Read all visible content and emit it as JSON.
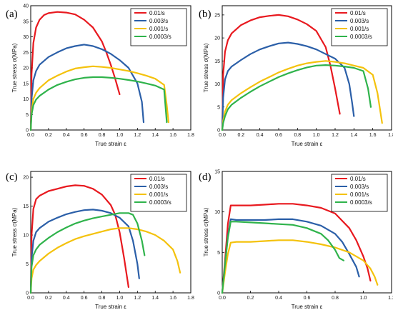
{
  "chart_data": [
    {
      "panel": "(a)",
      "type": "line",
      "xlabel": "True strain ε",
      "ylabel": "True stress σ(MPa)",
      "xlim": [
        0.0,
        1.8
      ],
      "ylim": [
        0,
        40
      ],
      "xticks": [
        0.0,
        0.2,
        0.4,
        0.6,
        0.8,
        1.0,
        1.2,
        1.4,
        1.6,
        1.8
      ],
      "yticks": [
        0,
        5,
        10,
        15,
        20,
        25,
        30,
        35,
        40
      ],
      "legend": "top-right",
      "series": [
        {
          "name": "0.01/s",
          "color": "#e8191f",
          "x": [
            0,
            0.01,
            0.03,
            0.06,
            0.1,
            0.15,
            0.2,
            0.3,
            0.4,
            0.5,
            0.6,
            0.7,
            0.8,
            0.85,
            0.9,
            0.95,
            1.0
          ],
          "y": [
            0,
            18,
            28,
            33,
            35.5,
            37,
            37.6,
            38,
            37.8,
            37.2,
            35.5,
            33,
            28.5,
            25,
            21,
            16.5,
            11.5
          ]
        },
        {
          "name": "0.003/s",
          "color": "#2b5fa8",
          "x": [
            0,
            0.01,
            0.03,
            0.06,
            0.1,
            0.2,
            0.3,
            0.4,
            0.5,
            0.6,
            0.7,
            0.8,
            0.9,
            1.0,
            1.1,
            1.2,
            1.25,
            1.27
          ],
          "y": [
            0,
            10,
            16,
            19,
            21,
            23.5,
            25,
            26.3,
            27,
            27.5,
            27,
            26,
            24.5,
            22.5,
            20,
            15,
            9,
            2.5
          ]
        },
        {
          "name": "0.001/s",
          "color": "#f4c20d",
          "x": [
            0,
            0.01,
            0.03,
            0.06,
            0.1,
            0.2,
            0.3,
            0.4,
            0.5,
            0.6,
            0.7,
            0.8,
            0.9,
            1.0,
            1.1,
            1.2,
            1.3,
            1.4,
            1.5,
            1.53,
            1.55
          ],
          "y": [
            0,
            6,
            10,
            12,
            13.5,
            16,
            17.5,
            18.8,
            19.8,
            20.2,
            20.5,
            20.3,
            20,
            19.5,
            19,
            18.3,
            17.5,
            16.5,
            14.5,
            8,
            2.5
          ]
        },
        {
          "name": "0.0003/s",
          "color": "#2fb34b",
          "x": [
            0,
            0.01,
            0.03,
            0.06,
            0.1,
            0.2,
            0.3,
            0.4,
            0.5,
            0.6,
            0.7,
            0.8,
            0.9,
            1.0,
            1.1,
            1.2,
            1.3,
            1.4,
            1.5,
            1.53
          ],
          "y": [
            0,
            5,
            8,
            9.8,
            11,
            13,
            14.5,
            15.5,
            16.3,
            16.8,
            17,
            17,
            16.8,
            16.5,
            16.1,
            15.6,
            15,
            14.3,
            13,
            2.5
          ]
        }
      ]
    },
    {
      "panel": "(b)",
      "type": "line",
      "xlabel": "True strain ε",
      "ylabel": "True stress σ(MPa)",
      "xlim": [
        0.0,
        1.8
      ],
      "ylim": [
        0,
        27
      ],
      "xticks": [
        0.0,
        0.2,
        0.4,
        0.6,
        0.8,
        1.0,
        1.2,
        1.4,
        1.6,
        1.8
      ],
      "yticks": [
        0,
        5,
        10,
        15,
        20,
        25
      ],
      "legend": "top-right",
      "series": [
        {
          "name": "0.01/s",
          "color": "#e8191f",
          "x": [
            0,
            0.01,
            0.03,
            0.06,
            0.1,
            0.2,
            0.3,
            0.4,
            0.5,
            0.6,
            0.7,
            0.8,
            0.9,
            1.0,
            1.1,
            1.15,
            1.2,
            1.25
          ],
          "y": [
            0,
            12,
            17,
            19.5,
            21,
            22.8,
            23.8,
            24.5,
            24.8,
            25,
            24.7,
            24,
            23,
            21.5,
            18,
            14,
            9,
            3.5
          ]
        },
        {
          "name": "0.003/s",
          "color": "#2b5fa8",
          "x": [
            0,
            0.01,
            0.03,
            0.06,
            0.1,
            0.2,
            0.3,
            0.4,
            0.5,
            0.6,
            0.7,
            0.8,
            0.9,
            1.0,
            1.1,
            1.2,
            1.3,
            1.35,
            1.38,
            1.4
          ],
          "y": [
            0,
            7,
            11,
            12.8,
            13.8,
            15.2,
            16.5,
            17.5,
            18.2,
            18.8,
            19,
            18.7,
            18.2,
            17.5,
            16.5,
            15.5,
            13.5,
            10,
            6,
            3
          ]
        },
        {
          "name": "0.001/s",
          "color": "#f4c20d",
          "x": [
            0,
            0.01,
            0.03,
            0.06,
            0.1,
            0.2,
            0.3,
            0.4,
            0.5,
            0.6,
            0.7,
            0.8,
            0.9,
            1.0,
            1.1,
            1.2,
            1.3,
            1.4,
            1.5,
            1.6,
            1.65,
            1.7
          ],
          "y": [
            0,
            2,
            4,
            5.5,
            6.5,
            8,
            9.3,
            10.5,
            11.5,
            12.5,
            13.3,
            14,
            14.5,
            14.8,
            15,
            14.8,
            14.5,
            14,
            13.5,
            12,
            8,
            1.5
          ]
        },
        {
          "name": "0.0003/s",
          "color": "#2fb34b",
          "x": [
            0,
            0.01,
            0.03,
            0.06,
            0.1,
            0.2,
            0.3,
            0.4,
            0.5,
            0.6,
            0.7,
            0.8,
            0.9,
            1.0,
            1.1,
            1.2,
            1.3,
            1.4,
            1.5,
            1.55,
            1.58
          ],
          "y": [
            0,
            1.5,
            3,
            4.5,
            5.5,
            7,
            8.3,
            9.5,
            10.5,
            11.5,
            12.3,
            13,
            13.6,
            14,
            14.1,
            14,
            13.8,
            13.5,
            12.8,
            9,
            5
          ]
        }
      ]
    },
    {
      "panel": "(c)",
      "type": "line",
      "xlabel": "True strain ε",
      "ylabel": "True stress σ(MPa)",
      "xlim": [
        0.0,
        1.8
      ],
      "ylim": [
        0,
        21
      ],
      "xticks": [
        0.0,
        0.2,
        0.4,
        0.6,
        0.8,
        1.0,
        1.2,
        1.4,
        1.6,
        1.8
      ],
      "yticks": [
        0,
        5,
        10,
        15,
        20
      ],
      "legend": "top-right",
      "series": [
        {
          "name": "0.01/s",
          "color": "#e8191f",
          "x": [
            0,
            0.01,
            0.03,
            0.06,
            0.1,
            0.2,
            0.3,
            0.4,
            0.5,
            0.6,
            0.7,
            0.8,
            0.9,
            0.95,
            1.0,
            1.05,
            1.08,
            1.1
          ],
          "y": [
            0,
            10,
            14.5,
            16.2,
            16.8,
            17.6,
            18,
            18.4,
            18.6,
            18.5,
            18,
            17,
            15.2,
            13.5,
            10.5,
            6,
            3,
            1
          ]
        },
        {
          "name": "0.003/s",
          "color": "#2b5fa8",
          "x": [
            0,
            0.01,
            0.03,
            0.06,
            0.1,
            0.2,
            0.3,
            0.4,
            0.5,
            0.6,
            0.7,
            0.8,
            0.9,
            1.0,
            1.1,
            1.15,
            1.2,
            1.22
          ],
          "y": [
            0,
            6,
            9,
            10.5,
            11.2,
            12.3,
            13,
            13.6,
            14,
            14.3,
            14.4,
            14.2,
            13.8,
            13,
            11.5,
            9,
            5,
            2.5
          ]
        },
        {
          "name": "0.001/s",
          "color": "#f4c20d",
          "x": [
            0,
            0.01,
            0.03,
            0.06,
            0.1,
            0.2,
            0.3,
            0.4,
            0.5,
            0.6,
            0.7,
            0.8,
            0.9,
            1.0,
            1.1,
            1.2,
            1.3,
            1.4,
            1.5,
            1.6,
            1.65,
            1.68
          ],
          "y": [
            0,
            2.5,
            4,
            4.8,
            5.5,
            6.8,
            7.8,
            8.6,
            9.3,
            9.8,
            10.2,
            10.6,
            11,
            11.2,
            11.2,
            11,
            10.6,
            10,
            9,
            7.5,
            5.5,
            3.5
          ]
        },
        {
          "name": "0.0003/s",
          "color": "#2fb34b",
          "x": [
            0,
            0.01,
            0.03,
            0.06,
            0.1,
            0.2,
            0.3,
            0.4,
            0.5,
            0.6,
            0.7,
            0.8,
            0.9,
            1.0,
            1.1,
            1.15,
            1.2,
            1.25,
            1.28
          ],
          "y": [
            0,
            4.5,
            6.5,
            7.5,
            8.3,
            9.5,
            10.5,
            11.3,
            12,
            12.5,
            12.9,
            13.2,
            13.5,
            13.8,
            13.8,
            13.5,
            12,
            9,
            6.5
          ]
        }
      ]
    },
    {
      "panel": "(d)",
      "type": "line",
      "xlabel": "True strain ε",
      "ylabel": "True stress σ(MPa)",
      "xlim": [
        0.0,
        1.2
      ],
      "ylim": [
        0,
        15
      ],
      "xticks": [
        0.0,
        0.2,
        0.4,
        0.6,
        0.8,
        1.0,
        1.2
      ],
      "yticks": [
        0,
        5,
        10,
        15
      ],
      "legend": "top-right",
      "series": [
        {
          "name": "0.01/s",
          "color": "#e8191f",
          "x": [
            0,
            0.02,
            0.04,
            0.06,
            0.1,
            0.2,
            0.3,
            0.4,
            0.5,
            0.6,
            0.7,
            0.8,
            0.9,
            0.95,
            1.0,
            1.03,
            1.05
          ],
          "y": [
            0,
            4,
            8.5,
            10.8,
            10.8,
            10.8,
            10.9,
            11,
            11,
            10.8,
            10.5,
            9.8,
            8,
            6.5,
            4.5,
            3,
            1.5
          ]
        },
        {
          "name": "0.003/s",
          "color": "#2b5fa8",
          "x": [
            0,
            0.02,
            0.04,
            0.06,
            0.1,
            0.2,
            0.3,
            0.4,
            0.5,
            0.6,
            0.7,
            0.8,
            0.85,
            0.9,
            0.95,
            0.97
          ],
          "y": [
            0,
            3.5,
            7,
            9.1,
            9,
            9,
            9,
            9.1,
            9.1,
            8.8,
            8.3,
            7.3,
            6.3,
            4.8,
            3.2,
            2
          ]
        },
        {
          "name": "0.001/s",
          "color": "#f4c20d",
          "x": [
            0,
            0.02,
            0.04,
            0.06,
            0.1,
            0.2,
            0.3,
            0.4,
            0.5,
            0.6,
            0.7,
            0.8,
            0.9,
            1.0,
            1.05,
            1.08,
            1.1
          ],
          "y": [
            0,
            2.5,
            4.8,
            6.2,
            6.3,
            6.3,
            6.4,
            6.5,
            6.5,
            6.3,
            6,
            5.6,
            5,
            4,
            3,
            2,
            1
          ]
        },
        {
          "name": "0.0003/s",
          "color": "#2fb34b",
          "x": [
            0,
            0.02,
            0.04,
            0.06,
            0.1,
            0.2,
            0.3,
            0.4,
            0.5,
            0.6,
            0.7,
            0.75,
            0.8,
            0.83,
            0.86
          ],
          "y": [
            0,
            3.5,
            6.8,
            8.8,
            8.8,
            8.7,
            8.6,
            8.5,
            8.4,
            8,
            7.3,
            6.5,
            5.3,
            4.3,
            4
          ]
        }
      ]
    }
  ]
}
